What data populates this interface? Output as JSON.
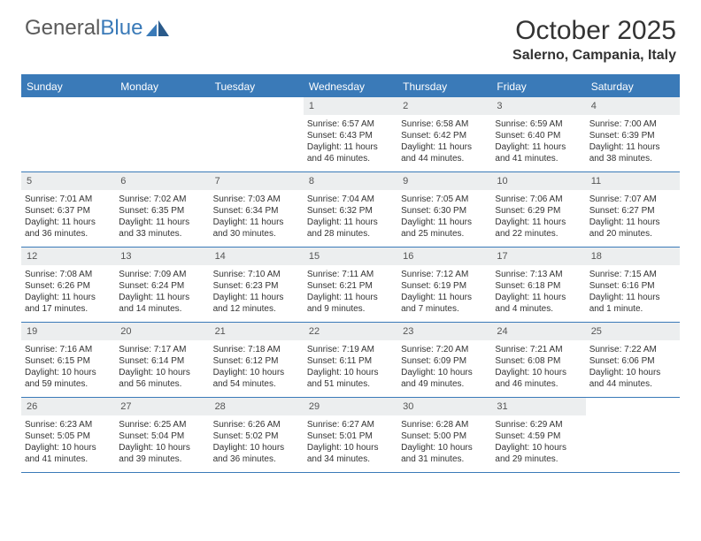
{
  "logo": {
    "word1": "General",
    "word2": "Blue"
  },
  "title": "October 2025",
  "location": "Salerno, Campania, Italy",
  "colors": {
    "accent": "#3a7ab8",
    "header_text": "#ffffff",
    "daynum_bg": "#eceeef",
    "text": "#333333",
    "logo_gray": "#5a5a5a"
  },
  "day_headers": [
    "Sunday",
    "Monday",
    "Tuesday",
    "Wednesday",
    "Thursday",
    "Friday",
    "Saturday"
  ],
  "weeks": [
    [
      {
        "empty": true
      },
      {
        "empty": true
      },
      {
        "empty": true
      },
      {
        "num": "1",
        "sunrise": "6:57 AM",
        "sunset": "6:43 PM",
        "day_h": "11",
        "day_m": "46"
      },
      {
        "num": "2",
        "sunrise": "6:58 AM",
        "sunset": "6:42 PM",
        "day_h": "11",
        "day_m": "44"
      },
      {
        "num": "3",
        "sunrise": "6:59 AM",
        "sunset": "6:40 PM",
        "day_h": "11",
        "day_m": "41"
      },
      {
        "num": "4",
        "sunrise": "7:00 AM",
        "sunset": "6:39 PM",
        "day_h": "11",
        "day_m": "38"
      }
    ],
    [
      {
        "num": "5",
        "sunrise": "7:01 AM",
        "sunset": "6:37 PM",
        "day_h": "11",
        "day_m": "36"
      },
      {
        "num": "6",
        "sunrise": "7:02 AM",
        "sunset": "6:35 PM",
        "day_h": "11",
        "day_m": "33"
      },
      {
        "num": "7",
        "sunrise": "7:03 AM",
        "sunset": "6:34 PM",
        "day_h": "11",
        "day_m": "30"
      },
      {
        "num": "8",
        "sunrise": "7:04 AM",
        "sunset": "6:32 PM",
        "day_h": "11",
        "day_m": "28"
      },
      {
        "num": "9",
        "sunrise": "7:05 AM",
        "sunset": "6:30 PM",
        "day_h": "11",
        "day_m": "25"
      },
      {
        "num": "10",
        "sunrise": "7:06 AM",
        "sunset": "6:29 PM",
        "day_h": "11",
        "day_m": "22"
      },
      {
        "num": "11",
        "sunrise": "7:07 AM",
        "sunset": "6:27 PM",
        "day_h": "11",
        "day_m": "20"
      }
    ],
    [
      {
        "num": "12",
        "sunrise": "7:08 AM",
        "sunset": "6:26 PM",
        "day_h": "11",
        "day_m": "17"
      },
      {
        "num": "13",
        "sunrise": "7:09 AM",
        "sunset": "6:24 PM",
        "day_h": "11",
        "day_m": "14"
      },
      {
        "num": "14",
        "sunrise": "7:10 AM",
        "sunset": "6:23 PM",
        "day_h": "11",
        "day_m": "12"
      },
      {
        "num": "15",
        "sunrise": "7:11 AM",
        "sunset": "6:21 PM",
        "day_h": "11",
        "day_m": "9"
      },
      {
        "num": "16",
        "sunrise": "7:12 AM",
        "sunset": "6:19 PM",
        "day_h": "11",
        "day_m": "7"
      },
      {
        "num": "17",
        "sunrise": "7:13 AM",
        "sunset": "6:18 PM",
        "day_h": "11",
        "day_m": "4"
      },
      {
        "num": "18",
        "sunrise": "7:15 AM",
        "sunset": "6:16 PM",
        "day_h": "11",
        "day_m": "1"
      }
    ],
    [
      {
        "num": "19",
        "sunrise": "7:16 AM",
        "sunset": "6:15 PM",
        "day_h": "10",
        "day_m": "59"
      },
      {
        "num": "20",
        "sunrise": "7:17 AM",
        "sunset": "6:14 PM",
        "day_h": "10",
        "day_m": "56"
      },
      {
        "num": "21",
        "sunrise": "7:18 AM",
        "sunset": "6:12 PM",
        "day_h": "10",
        "day_m": "54"
      },
      {
        "num": "22",
        "sunrise": "7:19 AM",
        "sunset": "6:11 PM",
        "day_h": "10",
        "day_m": "51"
      },
      {
        "num": "23",
        "sunrise": "7:20 AM",
        "sunset": "6:09 PM",
        "day_h": "10",
        "day_m": "49"
      },
      {
        "num": "24",
        "sunrise": "7:21 AM",
        "sunset": "6:08 PM",
        "day_h": "10",
        "day_m": "46"
      },
      {
        "num": "25",
        "sunrise": "7:22 AM",
        "sunset": "6:06 PM",
        "day_h": "10",
        "day_m": "44"
      }
    ],
    [
      {
        "num": "26",
        "sunrise": "6:23 AM",
        "sunset": "5:05 PM",
        "day_h": "10",
        "day_m": "41"
      },
      {
        "num": "27",
        "sunrise": "6:25 AM",
        "sunset": "5:04 PM",
        "day_h": "10",
        "day_m": "39"
      },
      {
        "num": "28",
        "sunrise": "6:26 AM",
        "sunset": "5:02 PM",
        "day_h": "10",
        "day_m": "36"
      },
      {
        "num": "29",
        "sunrise": "6:27 AM",
        "sunset": "5:01 PM",
        "day_h": "10",
        "day_m": "34"
      },
      {
        "num": "30",
        "sunrise": "6:28 AM",
        "sunset": "5:00 PM",
        "day_h": "10",
        "day_m": "31"
      },
      {
        "num": "31",
        "sunrise": "6:29 AM",
        "sunset": "4:59 PM",
        "day_h": "10",
        "day_m": "29"
      },
      {
        "empty": true
      }
    ]
  ],
  "labels": {
    "sunrise": "Sunrise: ",
    "sunset": "Sunset: ",
    "daylight_prefix": "Daylight: ",
    "hours_word": " hours and ",
    "minutes_word": " minutes.",
    "minute_word": " minute."
  }
}
